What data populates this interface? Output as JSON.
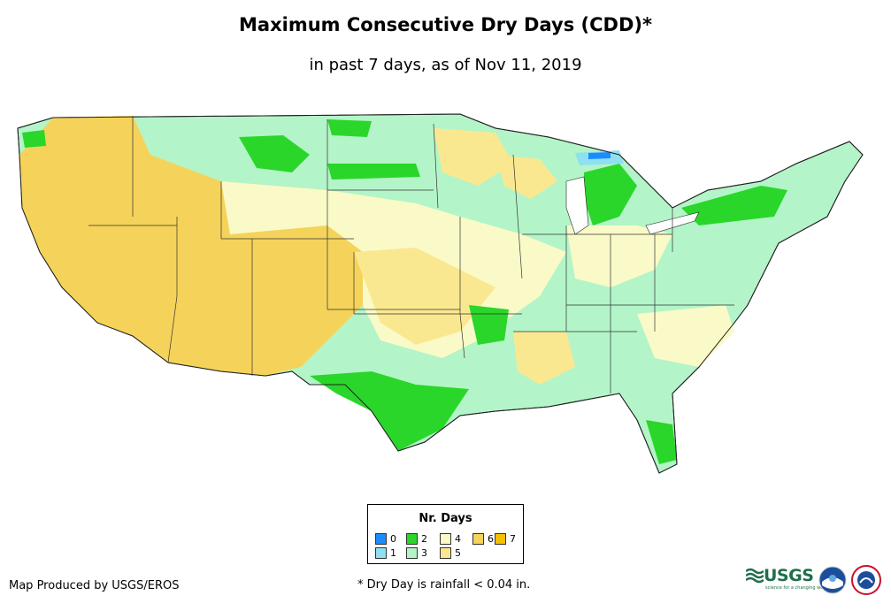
{
  "title": "Maximum Consecutive Dry Days (CDD)*",
  "subtitle": "in past 7 days, as of Nov 11, 2019",
  "legend": {
    "title": "Nr. Days",
    "items": [
      {
        "label": "0",
        "color": "#1a8cff"
      },
      {
        "label": "1",
        "color": "#8fe0f0"
      },
      {
        "label": "2",
        "color": "#2ad62a"
      },
      {
        "label": "3",
        "color": "#b3f5c8"
      },
      {
        "label": "4",
        "color": "#fafac8"
      },
      {
        "label": "5",
        "color": "#fae891"
      },
      {
        "label": "6",
        "color": "#f5d35a"
      },
      {
        "label": "7",
        "color": "#f5c000"
      }
    ]
  },
  "footer": {
    "credit": "Map Produced by USGS/EROS",
    "footnote": "* Dry Day is rainfall < 0.04 in."
  },
  "logos": {
    "usgs": "USGS",
    "usgs_tagline": "science for a changing world",
    "noaa": "NOAA",
    "nws": "National Weather Service"
  }
}
